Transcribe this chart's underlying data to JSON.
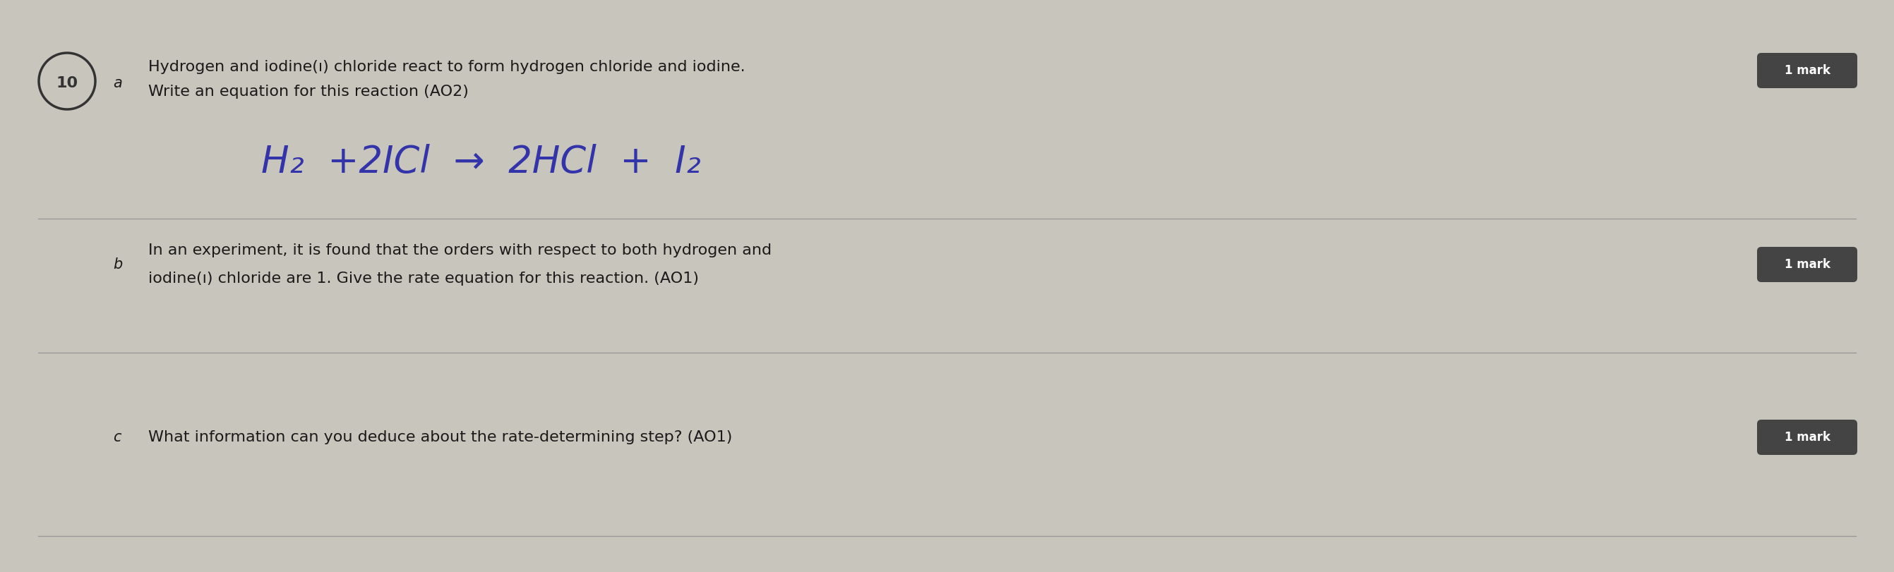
{
  "bg_color": "#c8c5bc",
  "text_color": "#1a1a1a",
  "equation_color": "#3333aa",
  "line_color": "#999999",
  "mark_bg": "#444444",
  "mark_text": "#ffffff",
  "circle_color": "#333333",
  "title_number": "10",
  "section_a_label": "a",
  "section_b_label": "b",
  "section_c_label": "c",
  "text_a_line1": "Hydrogen and iodine(ı) chloride react to form hydrogen chloride and iodine.",
  "text_a_line2": "Write an equation for this reaction (AO2)",
  "equation_text": "H₂  +2ICl  →  2HCl  +  I₂",
  "text_b_line1": "In an experiment, it is found that the orders with respect to both hydrogen and",
  "text_b_line2": "iodine(ı) chloride are 1. Give the rate equation for this reaction. (AO1)",
  "text_c": "What information can you deduce about the rate-determining step? (AO1)",
  "mark_label": "1 mark",
  "font_size_body": 16,
  "font_size_equation": 38,
  "font_size_mark": 12,
  "font_size_number": 16,
  "font_size_label": 15
}
